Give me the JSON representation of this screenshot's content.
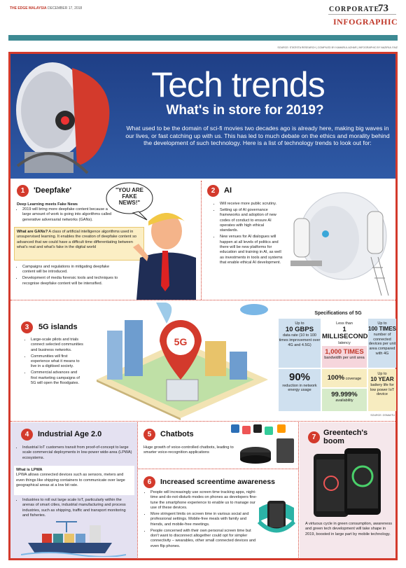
{
  "header": {
    "publication": "THE EDGE MALAYSIA",
    "date": "DECEMBER 17, 2018",
    "section": "CORPORATE",
    "page": "73",
    "label": "INFOGRAPHIC",
    "credits": "SOURCE: STATISTA RESEARCH | COMPILED BY KAMARUL AZHAR | INFOGRAPHIC BY NAZIRUL FAIZ"
  },
  "banner": {
    "title": "Tech trends",
    "subtitle": "What's in store for 2019?",
    "intro": "What used to be the domain of sci-fi movies two decades ago is already here, making big waves in our lives, or fast catching up with us. This has led to much debate on the ethics and morality behind the development of such technology. Here is a list of technology trends to look out for:"
  },
  "deepfake": {
    "number": "1",
    "title": "'Deepfake'",
    "subtitle": "Deep Learning meets Fake News",
    "intro_bullets": [
      "2019 will bring more deepfake content because a large amount of work is going into algorithms called generative adversarial networks (GANs)."
    ],
    "box_title": "What are GANs?",
    "box_text": "A class of artificial intelligence algorithms used in unsupervised learning. It enables the creation of deepfake content so advanced that we could have a difficult time differentiating between what's real and what's fake in the digital world",
    "bullets": [
      "Campaigns and regulations in mitigating deepfake content will be introduced.",
      "Development of media forensic tools and techniques to recognise deepfake content will be intensified."
    ],
    "quote": "\"YOU ARE FAKE NEWS!\""
  },
  "ai": {
    "number": "2",
    "title": "AI",
    "bullets": [
      "Will receive more public scrutiny.",
      "Setting up of AI governance frameworks and adoption of new codes of conduct to ensure AI operates with high ethical standards.",
      "New venues for AI dialogues will happen at all levels of politics and there will be new platforms for education and training in AI, as well as investments in tools and systems that enable ethical AI development."
    ]
  },
  "islands": {
    "number": "3",
    "title": "5G islands",
    "pin_label": "5G",
    "bullets": [
      "Large-scale pilots and trials connect selected communities and business networks.",
      "Communities will first experience what it means to live in a digitised society.",
      "Commercial advances and first marketing campaigns of 5G will open the floodgates."
    ]
  },
  "specs": {
    "title": "Specifications of 5G",
    "items": [
      {
        "pre": "Up to",
        "value": "10 GBPS",
        "text": "data rate (10 to 100 times improvement over 4G and 4.5G)"
      },
      {
        "pre": "Less than",
        "value": "1 MILLISECOND",
        "text": "latency"
      },
      {
        "pre": "Up to",
        "value": "100 TIMES",
        "text": "number of connected devices per unit area compared with 4G"
      },
      {
        "value": "1,000 TIMES",
        "text": "bandwidth per unit area"
      },
      {
        "value": "90%",
        "text": "reduction in network energy usage"
      },
      {
        "value": "100%",
        "text": "coverage"
      },
      {
        "value": "99.999%",
        "text": "availability"
      },
      {
        "pre": "Up to",
        "value": "10 YEAR",
        "text": "battery life for low power IoT device"
      }
    ],
    "source": "SOURCE: GSMA/ITU"
  },
  "industrial": {
    "number": "4",
    "title": "Industrial Age 2.0",
    "bullets_top": [
      "Industrial IoT customers transit from proof-of-concept to large scale commercial deployments in low-power wide-area (LPWA) ecosystems."
    ],
    "box_title": "What is LPWA",
    "box_text": "LPWA allows connected devices such as sensors, meters and even things like shipping containers to communicate over large geographical areas at a low bit rate.",
    "bullets": [
      "Industries to roll out large scale IoT, particularly within the arenas of smart cities, industrial manufacturing and process industries, such as shipping, traffic and transport monitoring and fisheries."
    ]
  },
  "chatbots": {
    "number": "5",
    "title": "Chatbots",
    "text": "Huge growth of voice-controlled chatbots, leading to smarter voice-recognition applications"
  },
  "screentime": {
    "number": "6",
    "title": "Increased screentime awareness",
    "bullets": [
      "People will increasingly use screen time tracking apps, night-time and do-not-disturb modes on phones as developers fine-tune the smartphone experience to enable us to manage our use of these devices.",
      "More stringent limits on screen time in various social and professional settings. Mobile-free meals with family and friends, and mobile-free meetings.",
      "People concerned with their own personal screen time but don't want to disconnect altogether could opt for simpler connectivity – wearables, other small connected devices and even flip phones."
    ]
  },
  "greentech": {
    "number": "7",
    "title": "Greentech's boom",
    "text": "A virtuous cycle in green consumption, awareness and green tech development will take shape in 2019, boosted in large part by mobile technology."
  }
}
